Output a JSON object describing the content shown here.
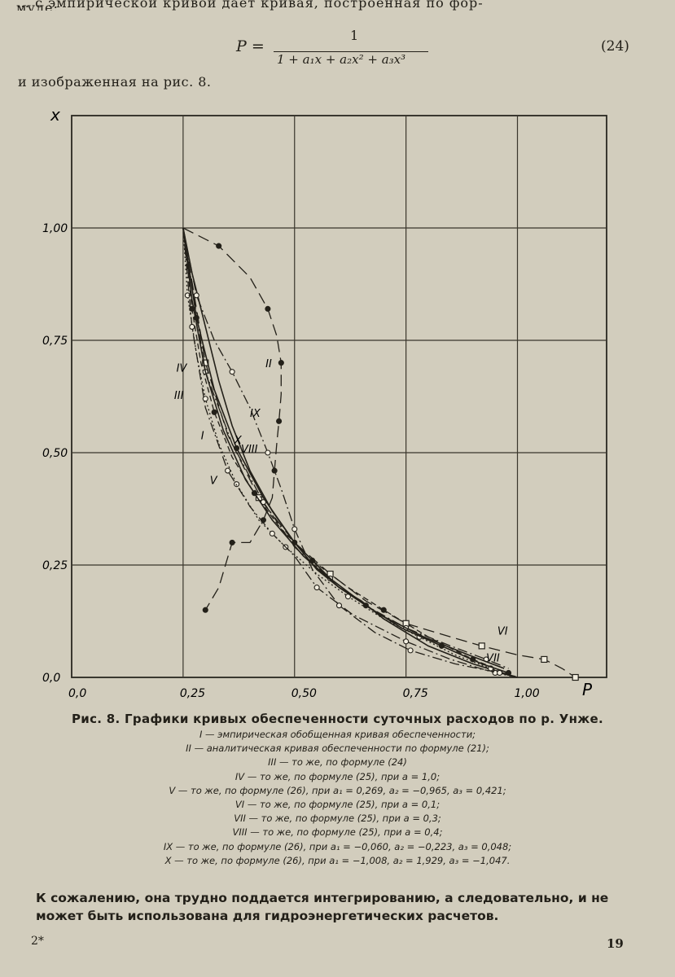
{
  "text": {
    "intro_line1": "… с эмпирической кривой дает кривая, построенная по фор-",
    "intro_line2": "муле:",
    "after_formula": "и изображенная на рис. 8.",
    "body_line1": "К сожалению, она трудно поддается интегрированию, а следовательно, и не",
    "body_line2": "может быть использована для гидроэнергетических расчетов."
  },
  "formula": {
    "lhs": "P =",
    "numerator": "1",
    "denominator": "1 + a₁x + a₂x² + a₃x³",
    "number": "(24)"
  },
  "chart_data": {
    "type": "line",
    "xlabel": "P",
    "ylabel": "x",
    "xlim": [
      0,
      1.2
    ],
    "ylim": [
      0,
      1.25
    ],
    "grid": true,
    "x_ticks": [
      "0,0",
      "0,25",
      "0,50",
      "0,75",
      "1,00"
    ],
    "y_ticks": [
      "0,0",
      "0,25",
      "0,50",
      "0,75",
      "1,00"
    ],
    "series": [
      {
        "name": "I",
        "style": "solid",
        "marker": "none",
        "label_at": [
          0.29,
          0.53
        ],
        "x": [
          0.25,
          0.27,
          0.3,
          0.33,
          0.36,
          0.4,
          0.45,
          0.5,
          0.55,
          0.6,
          0.65,
          0.7,
          0.75,
          0.8,
          0.85,
          0.9,
          0.95,
          1.0
        ],
        "y": [
          1.0,
          0.9,
          0.78,
          0.66,
          0.56,
          0.46,
          0.37,
          0.3,
          0.24,
          0.2,
          0.17,
          0.13,
          0.1,
          0.07,
          0.05,
          0.03,
          0.015,
          0.0
        ]
      },
      {
        "name": "II",
        "style": "longdash",
        "marker": "circle",
        "label_at": [
          0.435,
          0.69
        ],
        "x": [
          0.25,
          0.33,
          0.4,
          0.44,
          0.46,
          0.47,
          0.47,
          0.465,
          0.46,
          0.455,
          0.45,
          0.43,
          0.4,
          0.36,
          0.33,
          0.3
        ],
        "y": [
          1.0,
          0.96,
          0.89,
          0.82,
          0.76,
          0.7,
          0.63,
          0.57,
          0.52,
          0.46,
          0.4,
          0.35,
          0.3,
          0.3,
          0.2,
          0.15
        ]
      },
      {
        "name": "III",
        "style": "dotted",
        "marker": "circle",
        "label_at": [
          0.23,
          0.62
        ],
        "x": [
          0.25,
          0.26,
          0.28,
          0.3,
          0.33,
          0.37,
          0.42,
          0.48,
          0.55,
          0.62,
          0.7,
          0.78,
          0.86,
          0.94,
          1.0
        ],
        "y": [
          1.0,
          0.85,
          0.72,
          0.62,
          0.52,
          0.43,
          0.35,
          0.29,
          0.23,
          0.18,
          0.13,
          0.09,
          0.05,
          0.02,
          0.0
        ]
      },
      {
        "name": "IV",
        "style": "dash",
        "marker": "circle",
        "label_at": [
          0.235,
          0.68
        ],
        "x": [
          0.25,
          0.27,
          0.29,
          0.32,
          0.36,
          0.41,
          0.47,
          0.54,
          0.62,
          0.7,
          0.8,
          0.9,
          1.0
        ],
        "y": [
          1.0,
          0.82,
          0.7,
          0.59,
          0.49,
          0.41,
          0.33,
          0.26,
          0.2,
          0.15,
          0.09,
          0.04,
          0.0
        ]
      },
      {
        "name": "V",
        "style": "dashdot",
        "marker": "circle",
        "label_at": [
          0.31,
          0.43
        ],
        "x": [
          0.25,
          0.27,
          0.3,
          0.35,
          0.4,
          0.45,
          0.5,
          0.55,
          0.63,
          0.75,
          0.85,
          0.95,
          1.0
        ],
        "y": [
          1.0,
          0.78,
          0.6,
          0.46,
          0.38,
          0.32,
          0.27,
          0.2,
          0.14,
          0.08,
          0.04,
          0.01,
          0.0
        ]
      },
      {
        "name": "VI",
        "style": "longdash",
        "marker": "square",
        "label_at": [
          0.955,
          0.095
        ],
        "x": [
          0.25,
          0.3,
          0.35,
          0.42,
          0.5,
          0.58,
          0.66,
          0.75,
          0.85,
          0.92,
          1.0,
          1.06,
          1.1,
          1.13
        ],
        "y": [
          1.0,
          0.7,
          0.54,
          0.4,
          0.3,
          0.23,
          0.17,
          0.12,
          0.09,
          0.07,
          0.05,
          0.04,
          0.02,
          0.0
        ]
      },
      {
        "name": "VII",
        "style": "dashdot",
        "marker": "circle",
        "label_at": [
          0.93,
          0.035
        ],
        "x": [
          0.25,
          0.3,
          0.36,
          0.43,
          0.5,
          0.58,
          0.66,
          0.75,
          0.85,
          0.93,
          0.98
        ],
        "y": [
          1.0,
          0.68,
          0.52,
          0.39,
          0.29,
          0.22,
          0.16,
          0.11,
          0.07,
          0.04,
          0.02
        ]
      },
      {
        "name": "VIII",
        "style": "solid",
        "marker": "circle",
        "label_at": [
          0.38,
          0.5
        ],
        "x": [
          0.25,
          0.28,
          0.32,
          0.37,
          0.43,
          0.5,
          0.58,
          0.66,
          0.74,
          0.83,
          0.92,
          0.98
        ],
        "y": [
          1.0,
          0.8,
          0.64,
          0.51,
          0.4,
          0.3,
          0.22,
          0.16,
          0.11,
          0.07,
          0.03,
          0.01
        ]
      },
      {
        "name": "IX",
        "style": "dashdot",
        "marker": "circle",
        "label_at": [
          0.4,
          0.58
        ],
        "x": [
          0.25,
          0.28,
          0.32,
          0.36,
          0.4,
          0.44,
          0.47,
          0.5,
          0.54,
          0.6,
          0.68,
          0.76,
          0.86,
          0.96,
          1.0
        ],
        "y": [
          1.0,
          0.85,
          0.75,
          0.68,
          0.6,
          0.5,
          0.42,
          0.33,
          0.24,
          0.16,
          0.1,
          0.06,
          0.03,
          0.01,
          0.0
        ]
      },
      {
        "name": "X",
        "style": "solid",
        "marker": "none",
        "label_at": [
          0.365,
          0.52
        ],
        "x": [
          0.25,
          0.27,
          0.3,
          0.34,
          0.39,
          0.45,
          0.52,
          0.6,
          0.69,
          0.79,
          0.89,
          0.97
        ],
        "y": [
          1.0,
          0.84,
          0.68,
          0.55,
          0.44,
          0.35,
          0.27,
          0.2,
          0.14,
          0.09,
          0.05,
          0.02
        ]
      }
    ]
  },
  "caption": {
    "title": "Рис. 8. Графики кривых обеспеченности суточных расходов по р. Унже.",
    "items": [
      "I — эмпирическая обобщенная кривая обеспеченности;",
      "II — аналитическая кривая обеспеченности по формуле (21);",
      "III — то же, по формуле (24)",
      "IV — то же, по формуле (25), при a = 1,0;",
      "V — то же, по формуле (26), при a₁ = 0,269, a₂ = −0,965, a₃ = 0,421;",
      "VI — то же, по формуле (25), при a = 0,1;",
      "VII — то же, по формуле (25), при a = 0,3;",
      "VIII — то же, по формуле (25), при a = 0,4;",
      "IX — то же, по формуле (26), при a₁ = −0,060, a₂ = −0,223, a₃ = 0,048;",
      "X — то же, по формуле (26), при a₁ = −1,008, a₂ = 1,929, a₃ = −1,047."
    ]
  },
  "footer": {
    "signature": "2*",
    "page_number": "19"
  },
  "colors": {
    "paper": "#d2cdbd",
    "ink": "#232019"
  }
}
